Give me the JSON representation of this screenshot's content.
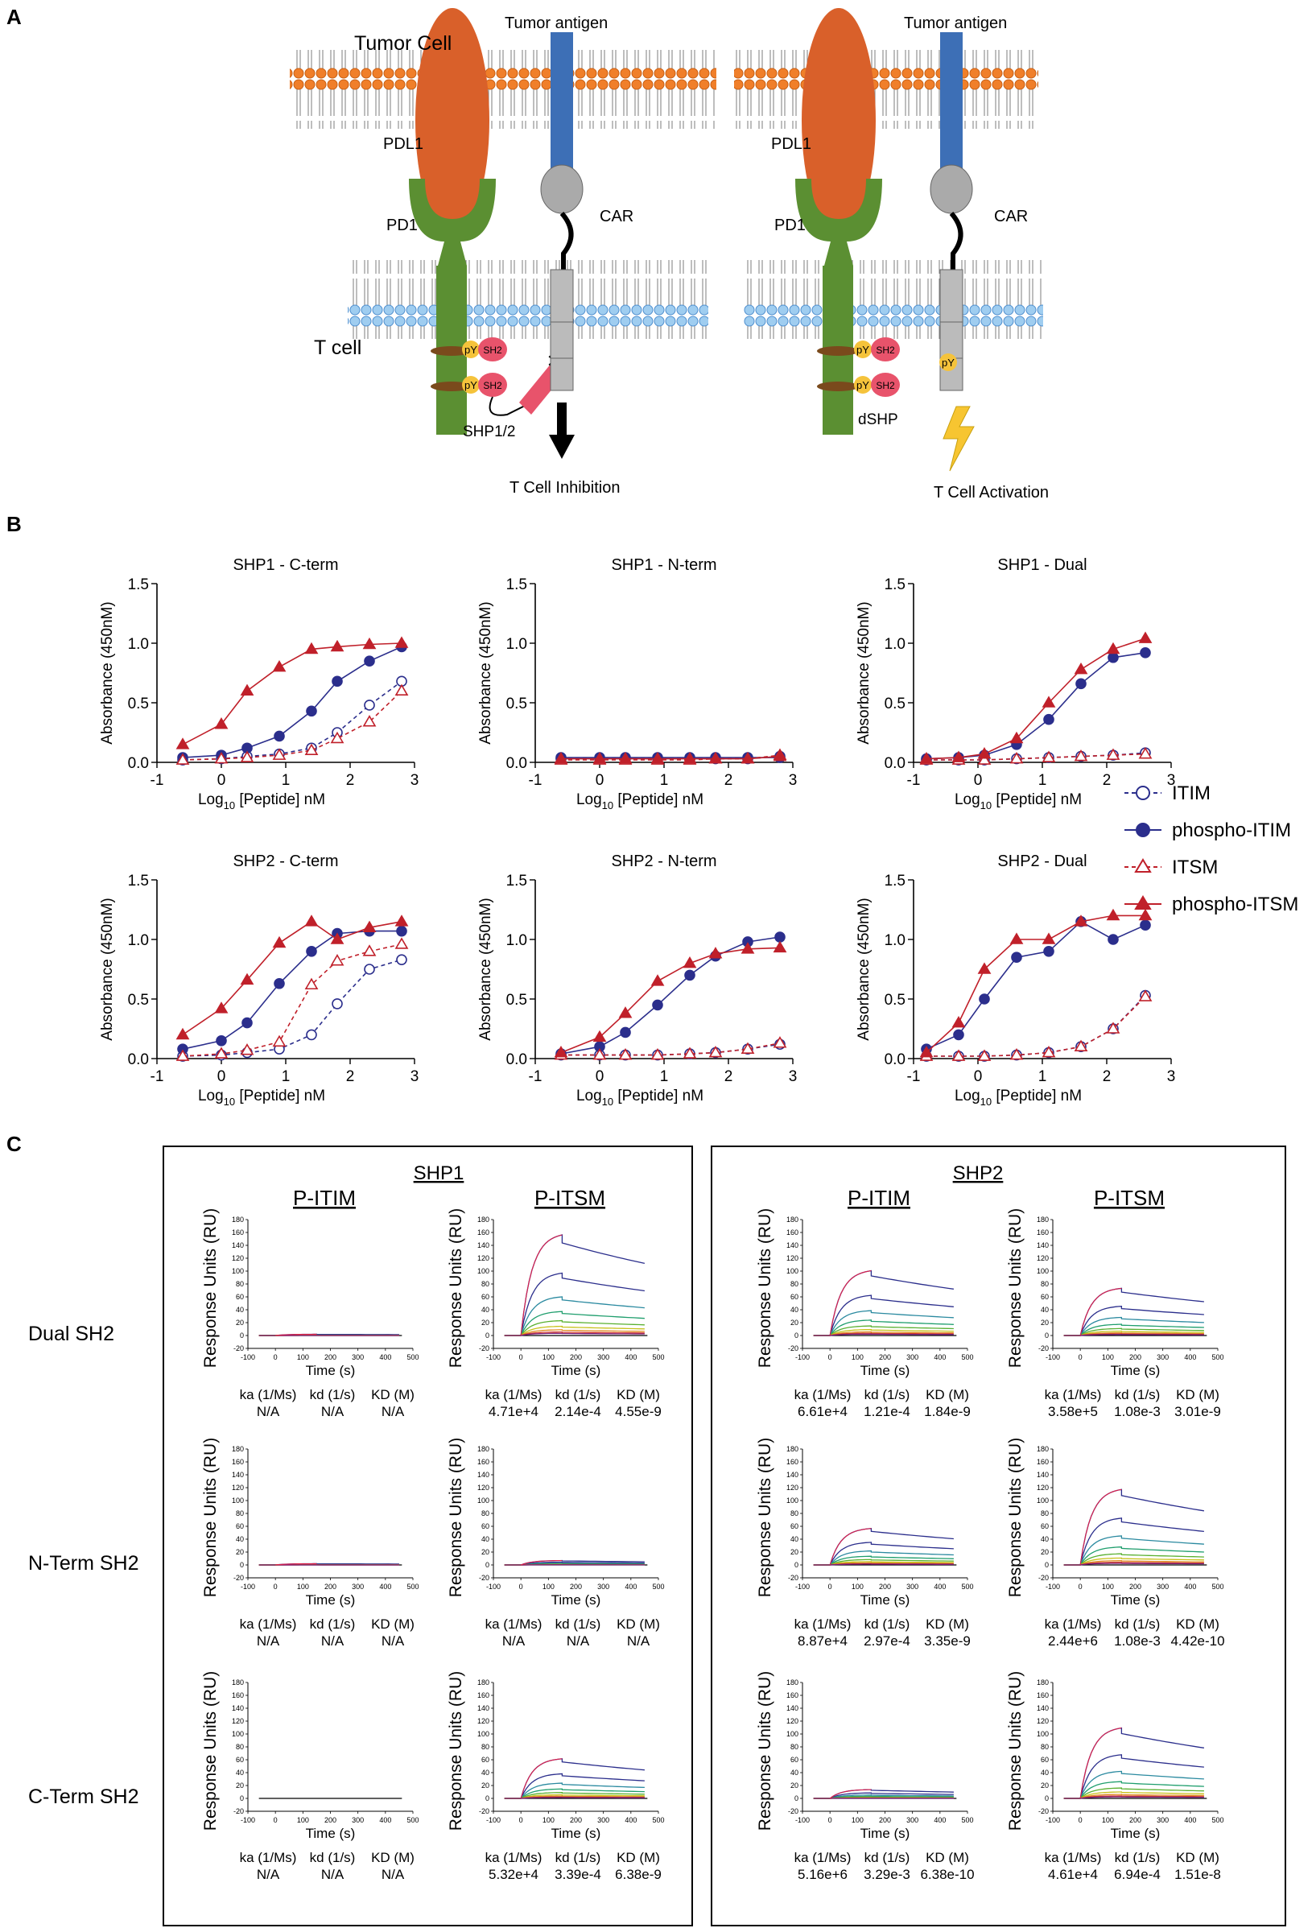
{
  "panelA": {
    "label": "A",
    "left": {
      "tumor_cell": "Tumor Cell",
      "tumor_antigen": "Tumor antigen",
      "pdl1": "PDL1",
      "pd1": "PD1",
      "car": "CAR",
      "t_cell": "T cell",
      "py": "pY",
      "sh2": "SH2",
      "shp": "SHP1/2",
      "outcome": "T Cell Inhibition"
    },
    "right": {
      "tumor_antigen": "Tumor antigen",
      "pdl1": "PDL1",
      "pd1": "PD1",
      "car": "CAR",
      "py": "pY",
      "sh2": "SH2",
      "dshp": "dSHP",
      "outcome": "T Cell Activation"
    }
  },
  "panelB": {
    "label": "B",
    "colors": {
      "itim": "#2b2e8c",
      "itsm": "#c0202a"
    },
    "legend": [
      "ITIM",
      "phospho-ITIM",
      "ITSM",
      "phospho-ITSM"
    ],
    "ylabel": "Absorbance (450nM)",
    "xlabel_main": "Log",
    "xlabel_sub": "10",
    "xlabel_rest": " [Peptide] nM",
    "chart_data": [
      {
        "type": "scatter",
        "title": "SHP1 - C-term",
        "xlim": [
          -1,
          3
        ],
        "ylim": [
          0,
          1.5
        ],
        "x": [
          -0.6,
          0,
          0.4,
          0.9,
          1.4,
          1.8,
          2.3,
          2.8
        ],
        "series": [
          {
            "name": "ITIM",
            "values": [
              0.02,
              0.03,
              0.05,
              0.07,
              0.12,
              0.25,
              0.48,
              0.68
            ]
          },
          {
            "name": "phospho-ITIM",
            "values": [
              0.04,
              0.06,
              0.12,
              0.22,
              0.43,
              0.68,
              0.85,
              0.97
            ]
          },
          {
            "name": "ITSM",
            "values": [
              0.02,
              0.03,
              0.04,
              0.06,
              0.1,
              0.2,
              0.34,
              0.6
            ]
          },
          {
            "name": "phospho-ITSM",
            "values": [
              0.15,
              0.32,
              0.6,
              0.8,
              0.95,
              0.97,
              0.99,
              1.0
            ]
          }
        ]
      },
      {
        "type": "scatter",
        "title": "SHP1 - N-term",
        "xlim": [
          -1,
          3
        ],
        "ylim": [
          0,
          1.5
        ],
        "x": [
          -0.6,
          0,
          0.4,
          0.9,
          1.4,
          1.8,
          2.3,
          2.8
        ],
        "series": [
          {
            "name": "ITIM",
            "values": [
              0.03,
              0.03,
              0.03,
              0.03,
              0.03,
              0.03,
              0.03,
              0.05
            ]
          },
          {
            "name": "phospho-ITIM",
            "values": [
              0.04,
              0.04,
              0.04,
              0.04,
              0.04,
              0.04,
              0.04,
              0.04
            ]
          },
          {
            "name": "ITSM",
            "values": [
              0.02,
              0.02,
              0.02,
              0.02,
              0.02,
              0.03,
              0.03,
              0.06
            ]
          },
          {
            "name": "phospho-ITSM",
            "values": [
              0.03,
              0.03,
              0.03,
              0.03,
              0.03,
              0.03,
              0.03,
              0.05
            ]
          }
        ]
      },
      {
        "type": "scatter",
        "title": "SHP1 - Dual",
        "xlim": [
          -1,
          3
        ],
        "ylim": [
          0,
          1.5
        ],
        "x": [
          -0.8,
          -0.3,
          0.1,
          0.6,
          1.1,
          1.6,
          2.1,
          2.6
        ],
        "series": [
          {
            "name": "ITIM",
            "values": [
              0.02,
              0.02,
              0.02,
              0.03,
              0.04,
              0.05,
              0.06,
              0.08
            ]
          },
          {
            "name": "phospho-ITIM",
            "values": [
              0.03,
              0.04,
              0.06,
              0.15,
              0.36,
              0.66,
              0.88,
              0.92
            ]
          },
          {
            "name": "ITSM",
            "values": [
              0.02,
              0.02,
              0.02,
              0.03,
              0.04,
              0.05,
              0.06,
              0.07
            ]
          },
          {
            "name": "phospho-ITSM",
            "values": [
              0.03,
              0.04,
              0.07,
              0.2,
              0.5,
              0.78,
              0.95,
              1.04
            ]
          }
        ]
      },
      {
        "type": "scatter",
        "title": "SHP2 - C-term",
        "xlim": [
          -1,
          3
        ],
        "ylim": [
          0,
          1.5
        ],
        "x": [
          -0.6,
          0,
          0.4,
          0.9,
          1.4,
          1.8,
          2.3,
          2.8
        ],
        "series": [
          {
            "name": "ITIM",
            "values": [
              0.02,
              0.03,
              0.05,
              0.08,
              0.2,
              0.46,
              0.75,
              0.83
            ]
          },
          {
            "name": "phospho-ITIM",
            "values": [
              0.08,
              0.15,
              0.3,
              0.63,
              0.9,
              1.05,
              1.07,
              1.07
            ]
          },
          {
            "name": "ITSM",
            "values": [
              0.02,
              0.04,
              0.07,
              0.14,
              0.62,
              0.82,
              0.9,
              0.96
            ]
          },
          {
            "name": "phospho-ITSM",
            "values": [
              0.2,
              0.42,
              0.66,
              0.97,
              1.15,
              1.0,
              1.1,
              1.15
            ]
          }
        ]
      },
      {
        "type": "scatter",
        "title": "SHP2 - N-term",
        "xlim": [
          -1,
          3
        ],
        "ylim": [
          0,
          1.5
        ],
        "x": [
          -0.6,
          0,
          0.4,
          0.9,
          1.4,
          1.8,
          2.3,
          2.8
        ],
        "series": [
          {
            "name": "ITIM",
            "values": [
              0.03,
              0.03,
              0.03,
              0.03,
              0.04,
              0.05,
              0.08,
              0.12
            ]
          },
          {
            "name": "phospho-ITIM",
            "values": [
              0.04,
              0.1,
              0.22,
              0.45,
              0.7,
              0.86,
              0.98,
              1.02
            ]
          },
          {
            "name": "ITSM",
            "values": [
              0.03,
              0.03,
              0.03,
              0.03,
              0.04,
              0.05,
              0.08,
              0.13
            ]
          },
          {
            "name": "phospho-ITSM",
            "values": [
              0.05,
              0.18,
              0.38,
              0.65,
              0.8,
              0.88,
              0.92,
              0.93
            ]
          }
        ]
      },
      {
        "type": "scatter",
        "title": "SHP2 - Dual",
        "xlim": [
          -1,
          3
        ],
        "ylim": [
          0,
          1.5
        ],
        "x": [
          -0.8,
          -0.3,
          0.1,
          0.6,
          1.1,
          1.6,
          2.1,
          2.6
        ],
        "series": [
          {
            "name": "ITIM",
            "values": [
              0.02,
              0.02,
              0.02,
              0.03,
              0.05,
              0.1,
              0.25,
              0.53
            ]
          },
          {
            "name": "phospho-ITIM",
            "values": [
              0.08,
              0.2,
              0.5,
              0.85,
              0.9,
              1.15,
              1.0,
              1.12
            ]
          },
          {
            "name": "ITSM",
            "values": [
              0.02,
              0.02,
              0.02,
              0.03,
              0.05,
              0.1,
              0.25,
              0.52
            ]
          },
          {
            "name": "phospho-ITSM",
            "values": [
              0.05,
              0.3,
              0.75,
              1.0,
              1.0,
              1.15,
              1.2,
              1.2
            ]
          }
        ]
      }
    ]
  },
  "panelC": {
    "label": "C",
    "groups": [
      "SHP1",
      "SHP2"
    ],
    "columns": [
      "P-ITIM",
      "P-ITSM",
      "P-ITIM",
      "P-ITSM"
    ],
    "rows": [
      "Dual SH2",
      "N-Term SH2",
      "C-Term SH2"
    ],
    "ylabel": "Response Units (RU)",
    "xlabel": "Time (s)",
    "kin_headers": [
      "ka (1/Ms)",
      "kd (1/s)",
      "KD (M)"
    ],
    "plots": [
      {
        "row": 0,
        "col": 0,
        "amp": 2,
        "ka": "N/A",
        "kd": "N/A",
        "KD": "N/A"
      },
      {
        "row": 0,
        "col": 1,
        "amp": 160,
        "ka": "4.71e+4",
        "kd": "2.14e-4",
        "KD": "4.55e-9"
      },
      {
        "row": 0,
        "col": 2,
        "amp": 103,
        "ka": "6.61e+4",
        "kd": "1.21e-4",
        "KD": "1.84e-9"
      },
      {
        "row": 0,
        "col": 3,
        "amp": 75,
        "ka": "3.58e+5",
        "kd": "1.08e-3",
        "KD": "3.01e-9"
      },
      {
        "row": 1,
        "col": 0,
        "amp": 2,
        "ka": "N/A",
        "kd": "N/A",
        "KD": "N/A"
      },
      {
        "row": 1,
        "col": 1,
        "amp": 7,
        "ka": "N/A",
        "kd": "N/A",
        "KD": "N/A"
      },
      {
        "row": 1,
        "col": 2,
        "amp": 58,
        "ka": "8.87e+4",
        "kd": "2.97e-4",
        "KD": "3.35e-9"
      },
      {
        "row": 1,
        "col": 3,
        "amp": 120,
        "ka": "2.44e+6",
        "kd": "1.08e-3",
        "KD": "4.42e-10"
      },
      {
        "row": 2,
        "col": 0,
        "amp": 0,
        "ka": "N/A",
        "kd": "N/A",
        "KD": "N/A"
      },
      {
        "row": 2,
        "col": 1,
        "amp": 63,
        "ka": "5.32e+4",
        "kd": "3.39e-4",
        "KD": "6.38e-9"
      },
      {
        "row": 2,
        "col": 2,
        "amp": 14,
        "ka": "5.16e+6",
        "kd": "3.29e-3",
        "KD": "6.38e-10"
      },
      {
        "row": 2,
        "col": 3,
        "amp": 112,
        "ka": "4.61e+4",
        "kd": "6.94e-4",
        "KD": "1.51e-8"
      }
    ]
  }
}
